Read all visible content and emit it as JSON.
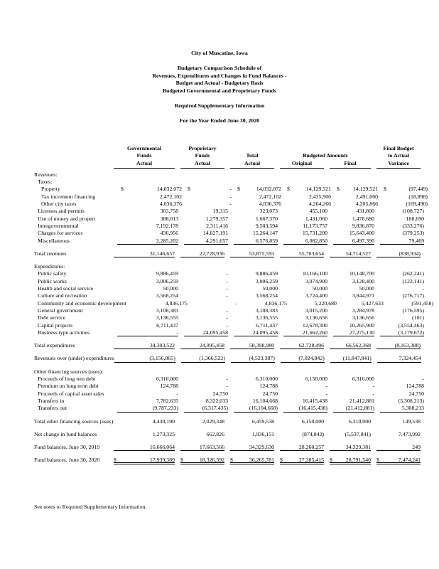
{
  "colors": {
    "paper": "#ffffff",
    "ink": "#000000"
  },
  "document": {
    "org": "City of Muscatine, Iowa",
    "schedule_title": [
      "Budgetary Comparison Schedule of",
      "Revenues, Expenditures and Changes in Fund Balances -",
      "Budget and Actual - Budgetary Basis",
      "Budgeted Governmental and Proprietary Funds"
    ],
    "subtitle": "Required Supplementary Information",
    "period": "For the Year Ended June 30, 2020",
    "footnote": "See notes to Required Supplementary Information."
  },
  "table": {
    "header": {
      "col1": [
        "Governmental",
        "Funds",
        "Actual"
      ],
      "col2": [
        "Proprietary",
        "Funds",
        "Actual"
      ],
      "col3": [
        "Total",
        "Actual"
      ],
      "budgeted_group": "Budgeted Amounts",
      "col4": "Original",
      "col5": "Final",
      "col6": [
        "Final Budget",
        "to Actual",
        "Variance"
      ]
    },
    "rows": [
      {
        "type": "section",
        "indent": 0,
        "label": "Revenues:"
      },
      {
        "type": "section",
        "indent": 1,
        "label": "Taxes:"
      },
      {
        "type": "data",
        "indent": 2,
        "label": "Property",
        "dollar": true,
        "values": [
          "14,032,072",
          "-",
          "14,032,072",
          "14,129,521",
          "14,129,521",
          "(97,449)"
        ]
      },
      {
        "type": "data",
        "indent": 2,
        "label": "Tax increment financing",
        "values": [
          "2,472,102",
          "-",
          "2,472,102",
          "2,435,900",
          "2,491,000",
          "(18,898)"
        ]
      },
      {
        "type": "data",
        "indent": 2,
        "label": "Other city taxes",
        "values": [
          "4,036,376",
          "-",
          "4,036,376",
          "4,264,266",
          "4,205,866",
          "(169,490)"
        ]
      },
      {
        "type": "data",
        "indent": 1,
        "label": "Licenses and permits",
        "values": [
          "303,758",
          "19,315",
          "323,073",
          "455,100",
          "431,800",
          "(108,727)"
        ]
      },
      {
        "type": "data",
        "indent": 1,
        "label": "Use of money and propert",
        "values": [
          "388,013",
          "1,279,357",
          "1,667,370",
          "1,431,060",
          "1,478,680",
          "188,690"
        ]
      },
      {
        "type": "data",
        "indent": 1,
        "label": "Intergovernmental",
        "values": [
          "7,192,178",
          "2,311,416",
          "9,503,594",
          "11,173,757",
          "9,836,870",
          "(333,276)"
        ]
      },
      {
        "type": "data",
        "indent": 1,
        "label": "Charges for services",
        "values": [
          "436,956",
          "14,827,191",
          "15,264,147",
          "15,731,200",
          "15,643,400",
          "(379,253)"
        ]
      },
      {
        "type": "data",
        "indent": 1,
        "label": "Miscellaneous",
        "ul": true,
        "values": [
          "2,285,202",
          "4,291,657",
          "6,576,859",
          "6,082,850",
          "6,497,390",
          "79,469"
        ]
      },
      {
        "type": "spacer"
      },
      {
        "type": "data",
        "indent": 0,
        "label": "Total revenues",
        "ul": true,
        "values": [
          "31,146,657",
          "22,728,936",
          "53,875,593",
          "55,703,654",
          "54,714,527",
          "(838,934)"
        ]
      },
      {
        "type": "spacer"
      },
      {
        "type": "section",
        "indent": 0,
        "label": "Expenditures:"
      },
      {
        "type": "data",
        "indent": 1,
        "label": "Public safety",
        "values": [
          "9,886,459",
          "-",
          "9,886,459",
          "10,166,100",
          "10,148,700",
          "(262,241)"
        ]
      },
      {
        "type": "data",
        "indent": 1,
        "label": "Public works",
        "values": [
          "3,006,259",
          "-",
          "3,006,259",
          "3,074,900",
          "3,128,400",
          "(122,141)"
        ]
      },
      {
        "type": "data",
        "indent": 1,
        "label": "Health and social service",
        "values": [
          "50,000",
          "-",
          "50,000",
          "50,000",
          "50,000",
          "-"
        ]
      },
      {
        "type": "data",
        "indent": 1,
        "label": "Culture and recreation",
        "values": [
          "3,568,254",
          "-",
          "3,568,254",
          "3,724,400",
          "3,844,971",
          "(276,717)"
        ]
      },
      {
        "type": "data",
        "indent": 1,
        "label": "Community and economic development",
        "values": [
          "4,836,175",
          "-",
          "4,836,175",
          "5,220,680",
          "5,427,633",
          "(591,458)"
        ]
      },
      {
        "type": "data",
        "indent": 1,
        "label": "General government",
        "values": [
          "3,108,383",
          "-",
          "3,108,383",
          "3,015,200",
          "3,284,978",
          "(176,595)"
        ]
      },
      {
        "type": "data",
        "indent": 1,
        "label": "Debt service",
        "values": [
          "3,136,555",
          "-",
          "3,136,555",
          "3,136,656",
          "3,136,656",
          "(101)"
        ]
      },
      {
        "type": "data",
        "indent": 1,
        "label": "Capital projects",
        "values": [
          "6,711,437",
          "-",
          "6,711,437",
          "12,678,300",
          "10,265,900",
          "(3,554,463)"
        ]
      },
      {
        "type": "data",
        "indent": 1,
        "label": "Business type activities",
        "ul": true,
        "values": [
          "-",
          "24,095,458",
          "24,095,458",
          "21,662,260",
          "27,275,130",
          "(3,179,672)"
        ]
      },
      {
        "type": "spacer"
      },
      {
        "type": "data",
        "indent": 0,
        "label": "Total expenditures",
        "ul": true,
        "values": [
          "34,303,522",
          "24,095,458",
          "58,398,980",
          "62,728,496",
          "66,562,368",
          "(8,163,388)"
        ]
      },
      {
        "type": "spacer"
      },
      {
        "type": "data",
        "indent": 0,
        "label": "Revenues over (under) expenditures",
        "ul": true,
        "values": [
          "(3,156,865)",
          "(1,366,522)",
          "(4,523,387)",
          "(7,024,842)",
          "(11,847,841)",
          "7,324,454"
        ]
      },
      {
        "type": "spacer"
      },
      {
        "type": "section",
        "indent": 0,
        "label": "Other financing sources (uses):"
      },
      {
        "type": "data",
        "indent": 1,
        "label": "Proceeds of long tem debt",
        "values": [
          "6,310,000",
          "-",
          "6,310,000",
          "6,150,000",
          "6,310,000",
          "-"
        ]
      },
      {
        "type": "data",
        "indent": 1,
        "label": "Premium on long term debt",
        "values": [
          "124,788",
          "-",
          "124,788",
          "-",
          "-",
          "124,788"
        ]
      },
      {
        "type": "data",
        "indent": 1,
        "label": "Proceeds of capital asset sales",
        "values": [
          "-",
          "24,750",
          "24,750",
          "-",
          "-",
          "24,750"
        ]
      },
      {
        "type": "data",
        "indent": 1,
        "label": "Transfers in",
        "values": [
          "7,782,635",
          "8,322,033",
          "16,104,668",
          "16,415,438",
          "21,412,881",
          "(5,308,213)"
        ]
      },
      {
        "type": "data",
        "indent": 1,
        "label": "Transfers out",
        "ul": true,
        "values": [
          "(9,787,233)",
          "(6,317,435)",
          "(16,104,668)",
          "(16,415,438)",
          "(21,412,881)",
          "5,308,213"
        ]
      },
      {
        "type": "spacer"
      },
      {
        "type": "data",
        "indent": 0,
        "label": "Total other financing sources (uses)",
        "values": [
          "4,430,190",
          "2,029,348",
          "6,459,538",
          "6,150,000",
          "6,310,000",
          "149,538"
        ]
      },
      {
        "type": "spacer"
      },
      {
        "type": "data",
        "indent": 0,
        "label": "Net change in fund balances",
        "values": [
          "1,273,325",
          "662,826",
          "1,936,151",
          "(874,842)",
          "(5,537,841)",
          "7,473,992"
        ]
      },
      {
        "type": "spacer"
      },
      {
        "type": "data",
        "indent": 0,
        "label": "Fund balances, June 30, 2019",
        "ul": true,
        "values": [
          "16,666,064",
          "17,663,566",
          "34,329,630",
          "28,260,257",
          "34,329,381",
          "249"
        ]
      },
      {
        "type": "spacer"
      },
      {
        "type": "data",
        "indent": 0,
        "label": "Fund balances, June 30, 2020",
        "dollar": true,
        "dul": true,
        "values": [
          "17,939,389",
          "18,326,392",
          "36,265,781",
          "27,385,415",
          "28,791,540",
          "7,474,241"
        ]
      }
    ]
  }
}
